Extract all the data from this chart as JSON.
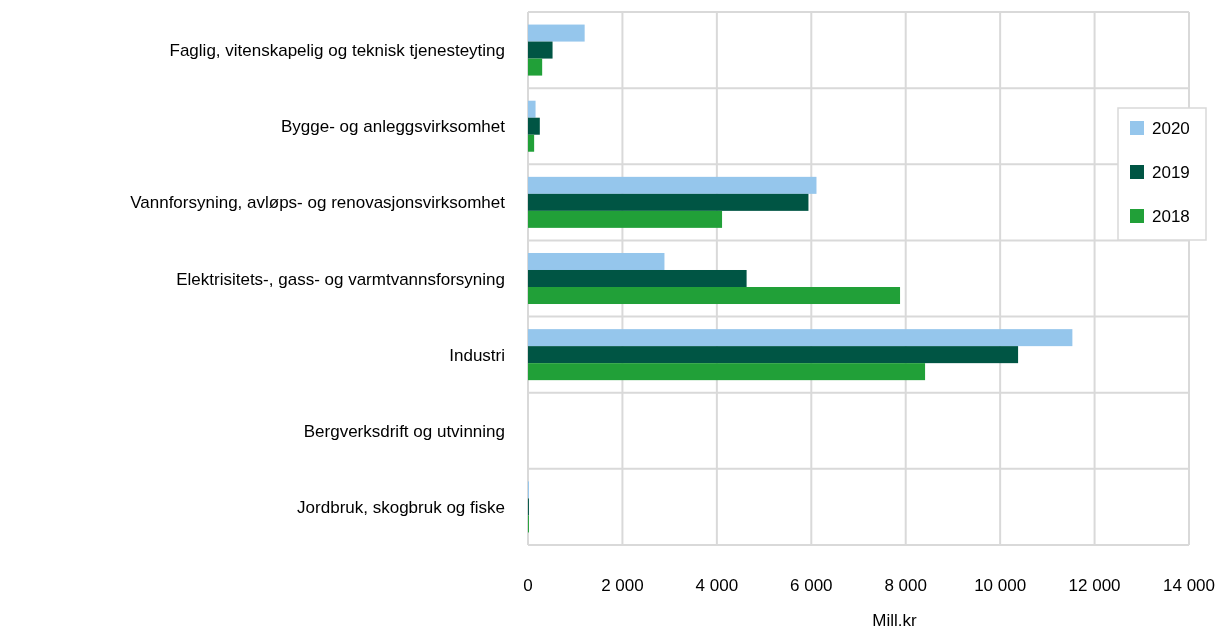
{
  "chart_data": {
    "type": "bar",
    "orientation": "horizontal",
    "xlabel": "Mill.kr",
    "categories": [
      "Faglig, vitenskapelig og teknisk tjenesteyting",
      "Bygge- og anleggsvirksomhet",
      "Vannforsyning, avløps- og renovasjonsvirksomhet",
      "Elektrisitets-, gass- og varmtvannsforsyning",
      "Industri",
      "Bergverksdrift og utvinning",
      "Jordbruk, skogbruk og fiske"
    ],
    "series": [
      {
        "name": "2020",
        "color": "#95c6ec",
        "values": [
          1200,
          160,
          6110,
          2890,
          11530,
          0,
          20
        ]
      },
      {
        "name": "2019",
        "color": "#005544",
        "values": [
          520,
          250,
          5940,
          4630,
          10380,
          0,
          20
        ]
      },
      {
        "name": "2018",
        "color": "#21a038",
        "values": [
          300,
          130,
          4110,
          7880,
          8410,
          0,
          20
        ]
      }
    ],
    "xlim": [
      0,
      14000
    ],
    "xticks": [
      0,
      {
        "value": 2000,
        "label": "2 000"
      },
      {
        "value": 4000,
        "label": "4 000"
      },
      {
        "value": 6000,
        "label": "6 000"
      },
      {
        "value": 8000,
        "label": "8 000"
      },
      {
        "value": 10000,
        "label": "10 000"
      },
      {
        "value": 12000,
        "label": "12 000"
      },
      {
        "value": 14000,
        "label": "14 000"
      }
    ],
    "grid": true,
    "legend": "right"
  }
}
